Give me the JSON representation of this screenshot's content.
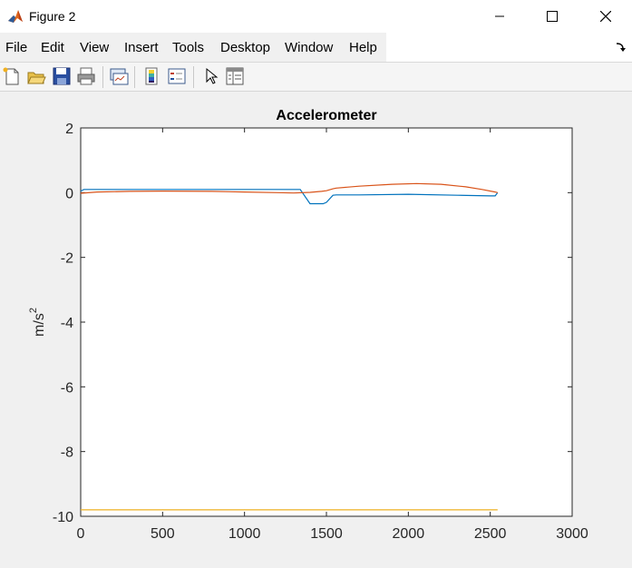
{
  "window": {
    "title": "Figure 2"
  },
  "menu": [
    "File",
    "Edit",
    "View",
    "Insert",
    "Tools",
    "Desktop",
    "Window",
    "Help"
  ],
  "toolbar": {
    "icons": [
      "new-figure-icon",
      "open-file-icon",
      "save-icon",
      "print-icon",
      "link-plot-icon",
      "insert-colorbar-icon",
      "insert-legend-icon",
      "edit-plot-arrow-icon",
      "property-inspector-icon"
    ]
  },
  "colors": {
    "series1": "#0072BD",
    "series2": "#D95319",
    "series3": "#EDB120"
  },
  "chart_data": {
    "type": "line",
    "title": "Accelerometer",
    "xlabel": "",
    "ylabel": "m/s",
    "ylabel_superscript": "2",
    "xlim": [
      0,
      3000
    ],
    "ylim": [
      -10,
      2
    ],
    "xticks": [
      "0",
      "500",
      "1000",
      "1500",
      "2000",
      "2500",
      "3000"
    ],
    "yticks": [
      "2",
      "0",
      "-2",
      "-4",
      "-6",
      "-8",
      "-10"
    ],
    "grid": false,
    "legend": false,
    "series": [
      {
        "x": [
          0,
          20,
          100,
          500,
          1000,
          1300,
          1340,
          1400,
          1430,
          1480,
          1500,
          1540,
          1560,
          1700,
          2000,
          2300,
          2500,
          2530,
          2545
        ],
        "y": [
          0.05,
          0.1,
          0.1,
          0.1,
          0.1,
          0.1,
          0.1,
          -0.34,
          -0.34,
          -0.34,
          -0.3,
          -0.08,
          -0.07,
          -0.07,
          -0.05,
          -0.08,
          -0.1,
          -0.1,
          0.0
        ]
      },
      {
        "x": [
          0,
          100,
          300,
          500,
          800,
          1000,
          1200,
          1300,
          1400,
          1470,
          1500,
          1540,
          1560,
          1700,
          1900,
          2050,
          2200,
          2350,
          2450,
          2530,
          2545
        ],
        "y": [
          -0.02,
          0.02,
          0.04,
          0.05,
          0.04,
          0.02,
          0.0,
          -0.01,
          0.01,
          0.04,
          0.06,
          0.12,
          0.14,
          0.2,
          0.26,
          0.28,
          0.26,
          0.18,
          0.1,
          0.02,
          0.0
        ]
      },
      {
        "x": [
          0,
          500,
          1000,
          1500,
          2000,
          2545
        ],
        "y": [
          -9.8,
          -9.8,
          -9.8,
          -9.8,
          -9.8,
          -9.8
        ]
      }
    ]
  }
}
